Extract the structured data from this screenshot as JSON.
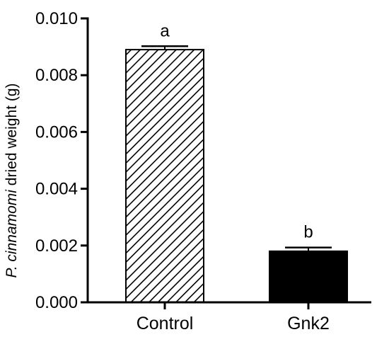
{
  "chart_data": {
    "type": "bar",
    "categories": [
      "Control",
      "Gnk2"
    ],
    "values": [
      0.0089,
      0.0018
    ],
    "error": [
      0.00012,
      0.00013
    ],
    "significance_labels": [
      "a",
      "b"
    ],
    "bar_fills": [
      "diagonal-hatch",
      "solid"
    ],
    "ylabel_italic": "P. cinnamomi",
    "ylabel_rest": " dried weight (g)",
    "ylim": [
      0,
      0.01
    ],
    "yticks": [
      "0.000",
      "0.002",
      "0.004",
      "0.006",
      "0.008",
      "0.010"
    ],
    "ytick_values": [
      0,
      0.002,
      0.004,
      0.006,
      0.008,
      0.01
    ],
    "grid": false,
    "colors": {
      "bar_solid": "#000000",
      "hatch": "#000000",
      "axis": "#000000"
    }
  }
}
